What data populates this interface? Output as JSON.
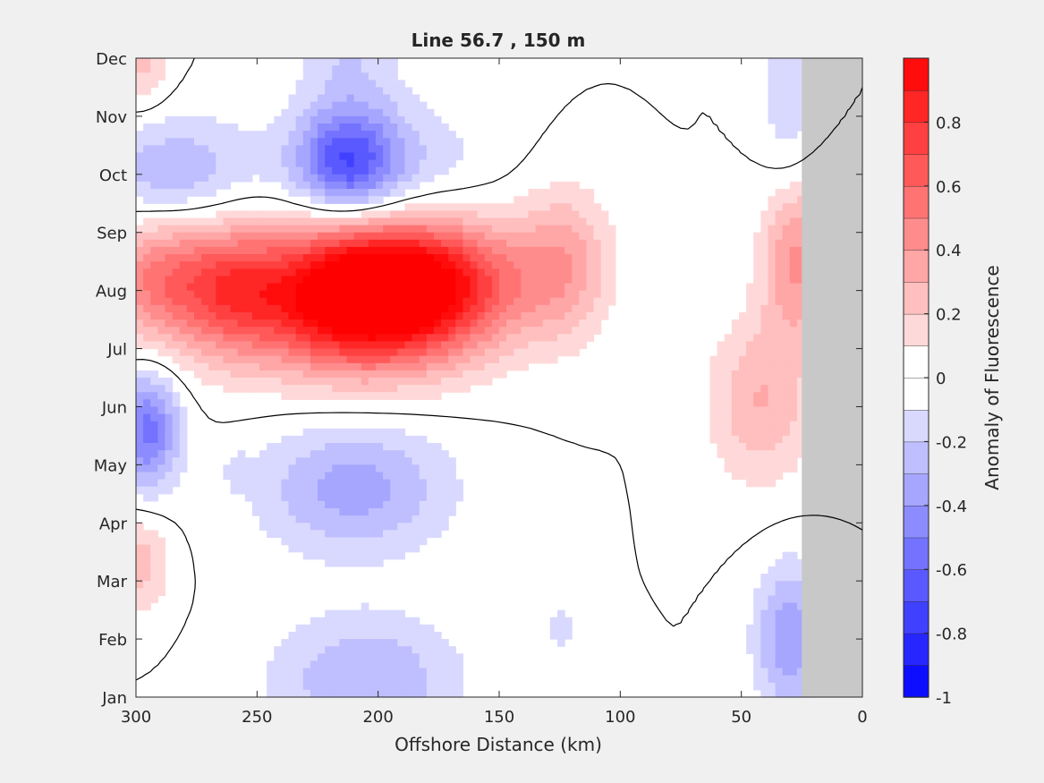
{
  "chart_data": {
    "type": "heatmap",
    "subtype": "filled-contour",
    "title": "Line 56.7 , 150 m",
    "xlabel": "Offshore Distance (km)",
    "ylabel": "",
    "x_reversed": true,
    "xlim": [
      300,
      0
    ],
    "x_ticks": [
      300,
      250,
      200,
      150,
      100,
      50,
      0
    ],
    "y_ticks": [
      "Jan",
      "Feb",
      "Mar",
      "Apr",
      "May",
      "Jun",
      "Jul",
      "Aug",
      "Sep",
      "Oct",
      "Nov",
      "Dec"
    ],
    "no_data_region_km": [
      25,
      0
    ],
    "colorbar": {
      "label": "Anomaly of Fluorescence",
      "range": [
        -1,
        1
      ],
      "step": 0.1,
      "ticks": [
        0.8,
        0.6,
        0.4,
        0.2,
        0,
        -0.2,
        -0.4,
        -0.6,
        -0.8,
        -1
      ],
      "tick_labels": [
        "0.8",
        "0.6",
        "0.4",
        "0.2",
        "0",
        "-0.2",
        "-0.4",
        "-0.6",
        "-0.8",
        "-1"
      ],
      "low_color": "#0000ff",
      "mid_color": "#ffffff",
      "high_color": "#ff0000"
    },
    "features": [
      {
        "x_km": 213,
        "month": 6.9,
        "peak": 0.95,
        "sx_km": 30,
        "sy_month": 0.9
      },
      {
        "x_km": 185,
        "month": 7.0,
        "peak": 0.6,
        "sx_km": 30,
        "sy_month": 0.8
      },
      {
        "x_km": 170,
        "month": 7.3,
        "peak": 0.25,
        "sx_km": 30,
        "sy_month": 0.8
      },
      {
        "x_km": 290,
        "month": 7.2,
        "peak": 0.5,
        "sx_km": 18,
        "sy_month": 0.8
      },
      {
        "x_km": 260,
        "month": 7.0,
        "peak": 0.45,
        "sx_km": 15,
        "sy_month": 0.8
      },
      {
        "x_km": 123,
        "month": 7.5,
        "peak": 0.3,
        "sx_km": 13,
        "sy_month": 0.9
      },
      {
        "x_km": 42,
        "month": 5.1,
        "peak": 0.3,
        "sx_km": 15,
        "sy_month": 1.0
      },
      {
        "x_km": 27,
        "month": 7.6,
        "peak": 0.45,
        "sx_km": 10,
        "sy_month": 1.0
      },
      {
        "x_km": 298,
        "month": 11.0,
        "peak": 0.25,
        "sx_km": 8,
        "sy_month": 0.6
      },
      {
        "x_km": 298,
        "month": 2.3,
        "peak": 0.25,
        "sx_km": 8,
        "sy_month": 0.6
      },
      {
        "x_km": 213,
        "month": 9.2,
        "peak": -0.5,
        "sx_km": 14,
        "sy_month": 0.6
      },
      {
        "x_km": 200,
        "month": 9.0,
        "peak": -0.25,
        "sx_km": 30,
        "sy_month": 0.9
      },
      {
        "x_km": 212,
        "month": 11.5,
        "peak": -0.2,
        "sx_km": 14,
        "sy_month": 1.3
      },
      {
        "x_km": 285,
        "month": 9.0,
        "peak": -0.3,
        "sx_km": 22,
        "sy_month": 0.7
      },
      {
        "x_km": 295,
        "month": 4.6,
        "peak": -0.55,
        "sx_km": 9,
        "sy_month": 0.7
      },
      {
        "x_km": 210,
        "month": 3.6,
        "peak": -0.35,
        "sx_km": 28,
        "sy_month": 0.8
      },
      {
        "x_km": 205,
        "month": 0.3,
        "peak": -0.3,
        "sx_km": 28,
        "sy_month": 0.8
      },
      {
        "x_km": 30,
        "month": 1.0,
        "peak": -0.4,
        "sx_km": 10,
        "sy_month": 0.9
      },
      {
        "x_km": 30,
        "month": 10.5,
        "peak": -0.2,
        "sx_km": 8,
        "sy_month": 1.5
      },
      {
        "x_km": 125,
        "month": 1.2,
        "peak": -0.15,
        "sx_km": 5,
        "sy_month": 0.3
      },
      {
        "x_km": 258,
        "month": 3.9,
        "peak": -0.12,
        "sx_km": 4,
        "sy_month": 0.2
      }
    ]
  }
}
